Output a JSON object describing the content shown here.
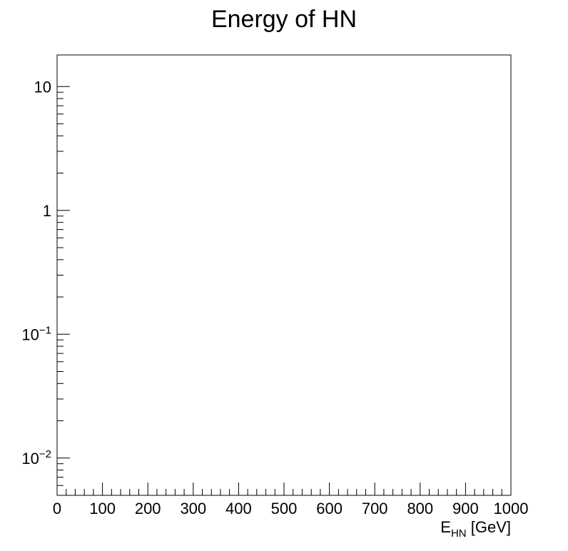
{
  "chart_data": {
    "type": "line",
    "title": "Energy of HN",
    "xlabel": {
      "main": "E",
      "sub": "HN",
      "unit": " [GeV]"
    },
    "ylabel": "",
    "xlim": [
      0,
      1000
    ],
    "ylim": [
      0.005,
      18
    ],
    "yscale": "log",
    "grid": false,
    "x_ticks": [
      {
        "value": 0,
        "label": "0"
      },
      {
        "value": 100,
        "label": "100"
      },
      {
        "value": 200,
        "label": "200"
      },
      {
        "value": 300,
        "label": "300"
      },
      {
        "value": 400,
        "label": "400"
      },
      {
        "value": 500,
        "label": "500"
      },
      {
        "value": 600,
        "label": "600"
      },
      {
        "value": 700,
        "label": "700"
      },
      {
        "value": 800,
        "label": "800"
      },
      {
        "value": 900,
        "label": "900"
      },
      {
        "value": 1000,
        "label": "1000"
      }
    ],
    "y_ticks": [
      {
        "value": 0.01,
        "base": "10",
        "exp": "−2"
      },
      {
        "value": 0.1,
        "base": "10",
        "exp": "−1"
      },
      {
        "value": 1,
        "base": "1",
        "exp": ""
      },
      {
        "value": 10,
        "base": "10",
        "exp": ""
      }
    ],
    "series": []
  }
}
